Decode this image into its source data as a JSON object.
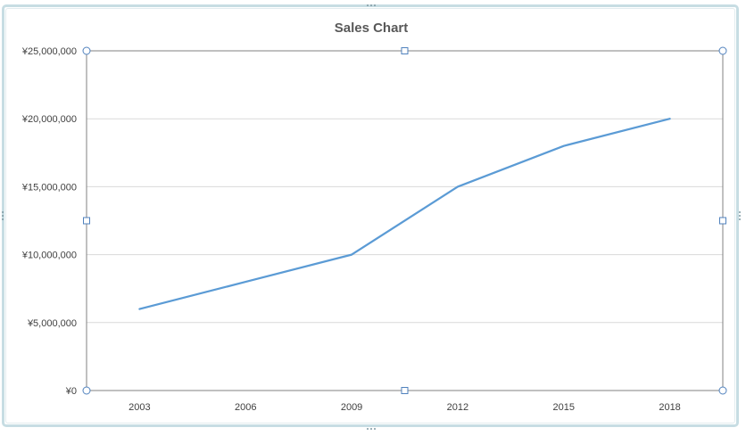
{
  "chart_data": {
    "type": "line",
    "title": "Sales Chart",
    "xlabel": "",
    "ylabel": "",
    "categories": [
      "2003",
      "2006",
      "2009",
      "2012",
      "2015",
      "2018"
    ],
    "series": [
      {
        "values": [
          6000000,
          8000000,
          10000000,
          15000000,
          18000000,
          20000000
        ],
        "color": "#5b9bd5"
      }
    ],
    "ylim": [
      0,
      25000000
    ],
    "yticks": [
      {
        "value": 0,
        "label": "¥0"
      },
      {
        "value": 5000000,
        "label": "¥5,000,000"
      },
      {
        "value": 10000000,
        "label": "¥10,000,000"
      },
      {
        "value": 15000000,
        "label": "¥15,000,000"
      },
      {
        "value": 20000000,
        "label": "¥20,000,000"
      },
      {
        "value": 25000000,
        "label": "¥25,000,000"
      }
    ],
    "grid": true,
    "legend": "none",
    "colors": {
      "gridline": "#d9d9d9",
      "plot_border": "#808080",
      "handle": "#4f81bd",
      "frame": "#c7dde3"
    }
  }
}
